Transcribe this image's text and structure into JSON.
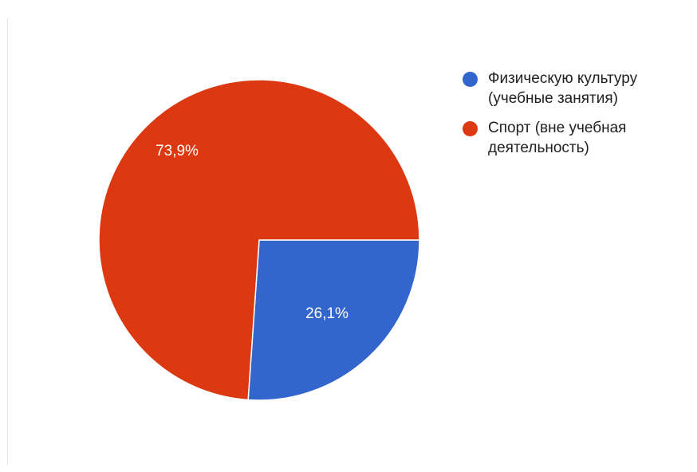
{
  "chart_data": {
    "type": "pie",
    "categories": [
      "Физическую культуру (учебные занятия)",
      "Спорт (вне учебная деятельность)"
    ],
    "values": [
      26.1,
      73.9
    ],
    "value_labels": [
      "26,1%",
      "73,9%"
    ],
    "colors": [
      "#3366cc",
      "#dc3912"
    ],
    "legend_position": "right"
  }
}
